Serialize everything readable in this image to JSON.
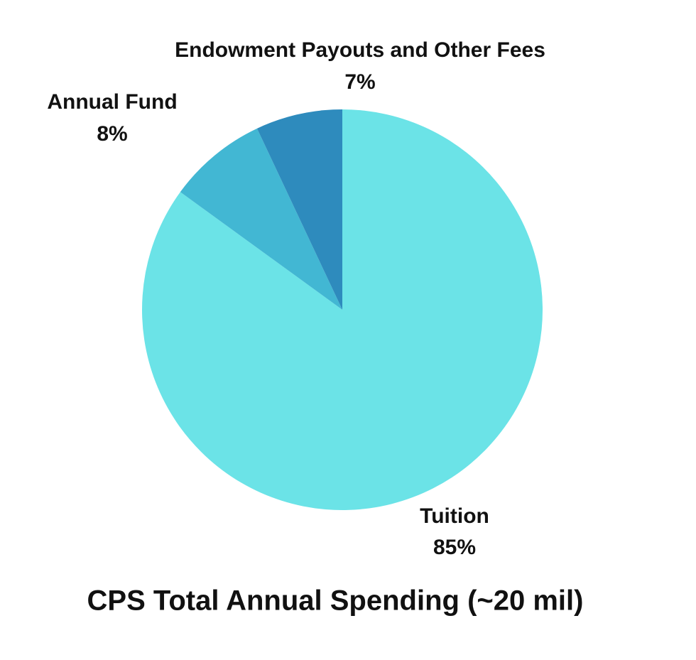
{
  "chart_data": {
    "type": "pie",
    "title": "CPS Total Annual Spending (~20 mil)",
    "categories": [
      "Tuition",
      "Annual Fund",
      "Endowment Payouts and Other Fees"
    ],
    "values": [
      85,
      8,
      7
    ],
    "value_labels": [
      "85%",
      "8%",
      "7%"
    ],
    "colors": [
      "#6be3e7",
      "#42b7d3",
      "#2e8bbd"
    ]
  }
}
